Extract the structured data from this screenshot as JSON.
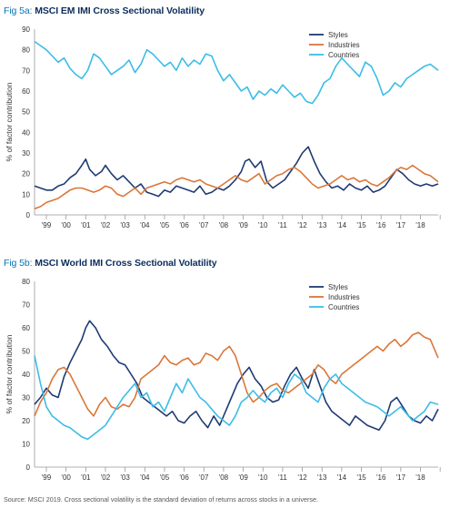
{
  "figures": [
    {
      "prefix": "Fig 5a:",
      "title": "MSCI EM IMI Cross Sectional Volatility"
    },
    {
      "prefix": "Fig 5b:",
      "title": "MSCI World IMI Cross Sectional Volatility"
    }
  ],
  "source": "Source: MSCI 2019. Cross sectional volatility is the standard deviation of returns across stocks in a universe.",
  "colors": {
    "styles": "#1f3b73",
    "industries": "#d9773a",
    "countries": "#3bbde8",
    "axis": "#999999"
  },
  "chart_data": [
    {
      "type": "line",
      "title": "",
      "xlabel": "",
      "ylabel": "% of factor contribution",
      "ylim": [
        0,
        90
      ],
      "yticks": [
        "0",
        "10",
        "20",
        "30",
        "40",
        "50",
        "60",
        "70",
        "80",
        "90"
      ],
      "xticks": [
        "'99",
        "'00",
        "'01",
        "'02",
        "'03",
        "'04",
        "'05",
        "'06",
        "'07",
        "'08",
        "'09",
        "'10",
        "'11",
        "'12",
        "'13",
        "'14",
        "'15",
        "'16",
        "'17",
        "'18"
      ],
      "xrange": [
        1998.4,
        2018.9
      ],
      "legend_position": "top-right",
      "series": [
        {
          "name": "Styles",
          "color_key": "styles",
          "x": [
            1998.4,
            1998.7,
            1999.0,
            1999.3,
            1999.6,
            1999.9,
            2000.2,
            2000.5,
            2000.8,
            2001.0,
            2001.2,
            2001.5,
            2001.8,
            2002.0,
            2002.3,
            2002.6,
            2002.9,
            2003.2,
            2003.5,
            2003.8,
            2004.1,
            2004.4,
            2004.7,
            2005.0,
            2005.3,
            2005.6,
            2005.9,
            2006.2,
            2006.5,
            2006.8,
            2007.1,
            2007.4,
            2007.7,
            2008.0,
            2008.3,
            2008.6,
            2008.9,
            2009.1,
            2009.3,
            2009.6,
            2009.9,
            2010.2,
            2010.5,
            2010.8,
            2011.1,
            2011.4,
            2011.7,
            2012.0,
            2012.3,
            2012.6,
            2012.9,
            2013.2,
            2013.5,
            2013.8,
            2014.1,
            2014.4,
            2014.7,
            2015.0,
            2015.3,
            2015.6,
            2015.9,
            2016.2,
            2016.5,
            2016.8,
            2017.1,
            2017.4,
            2017.7,
            2018.0,
            2018.3,
            2018.6,
            2018.9
          ],
          "y": [
            14,
            13,
            12,
            12,
            14,
            15,
            18,
            20,
            24,
            27,
            22,
            19,
            21,
            24,
            20,
            17,
            19,
            16,
            13,
            15,
            11,
            10,
            9,
            12,
            11,
            14,
            13,
            12,
            11,
            14,
            10,
            11,
            13,
            12,
            14,
            17,
            21,
            26,
            27,
            23,
            26,
            16,
            13,
            15,
            17,
            21,
            25,
            30,
            33,
            26,
            20,
            16,
            13,
            14,
            12,
            15,
            13,
            12,
            14,
            11,
            12,
            14,
            18,
            22,
            20,
            17,
            15,
            14,
            15,
            14,
            15
          ]
        },
        {
          "name": "Industries",
          "color_key": "industries",
          "x": [
            1998.4,
            1998.7,
            1999.0,
            1999.3,
            1999.6,
            1999.9,
            2000.2,
            2000.5,
            2000.8,
            2001.1,
            2001.4,
            2001.7,
            2002.0,
            2002.3,
            2002.6,
            2002.9,
            2003.2,
            2003.5,
            2003.8,
            2004.1,
            2004.4,
            2004.7,
            2005.0,
            2005.3,
            2005.6,
            2005.9,
            2006.2,
            2006.5,
            2006.8,
            2007.1,
            2007.4,
            2007.7,
            2008.0,
            2008.3,
            2008.6,
            2008.9,
            2009.2,
            2009.5,
            2009.8,
            2010.1,
            2010.4,
            2010.7,
            2011.0,
            2011.3,
            2011.6,
            2011.9,
            2012.2,
            2012.5,
            2012.8,
            2013.1,
            2013.4,
            2013.7,
            2014.0,
            2014.3,
            2014.6,
            2014.9,
            2015.2,
            2015.5,
            2015.8,
            2016.1,
            2016.4,
            2016.7,
            2017.0,
            2017.3,
            2017.6,
            2017.9,
            2018.2,
            2018.5,
            2018.9
          ],
          "y": [
            3,
            4,
            6,
            7,
            8,
            10,
            12,
            13,
            13,
            12,
            11,
            12,
            14,
            13,
            10,
            9,
            11,
            13,
            10,
            13,
            14,
            15,
            16,
            15,
            17,
            18,
            17,
            16,
            17,
            15,
            14,
            13,
            15,
            17,
            19,
            17,
            16,
            18,
            20,
            15,
            17,
            19,
            20,
            22,
            23,
            21,
            18,
            15,
            13,
            14,
            15,
            17,
            19,
            17,
            18,
            16,
            17,
            15,
            14,
            16,
            18,
            21,
            23,
            22,
            24,
            22,
            20,
            19,
            16
          ]
        },
        {
          "name": "Countries",
          "color_key": "countries",
          "x": [
            1998.4,
            1998.7,
            1999.0,
            1999.3,
            1999.6,
            1999.9,
            2000.2,
            2000.5,
            2000.8,
            2001.1,
            2001.4,
            2001.7,
            2002.0,
            2002.3,
            2002.6,
            2002.9,
            2003.2,
            2003.5,
            2003.8,
            2004.1,
            2004.4,
            2004.7,
            2005.0,
            2005.3,
            2005.6,
            2005.9,
            2006.2,
            2006.5,
            2006.8,
            2007.1,
            2007.4,
            2007.7,
            2008.0,
            2008.3,
            2008.6,
            2008.9,
            2009.2,
            2009.5,
            2009.8,
            2010.1,
            2010.4,
            2010.7,
            2011.0,
            2011.3,
            2011.6,
            2011.9,
            2012.2,
            2012.5,
            2012.8,
            2013.1,
            2013.4,
            2013.7,
            2014.0,
            2014.3,
            2014.6,
            2014.9,
            2015.2,
            2015.5,
            2015.8,
            2016.1,
            2016.4,
            2016.7,
            2017.0,
            2017.3,
            2017.6,
            2017.9,
            2018.2,
            2018.5,
            2018.9
          ],
          "y": [
            84,
            82,
            80,
            77,
            74,
            76,
            71,
            68,
            66,
            70,
            78,
            76,
            72,
            68,
            70,
            72,
            75,
            69,
            73,
            80,
            78,
            75,
            72,
            74,
            70,
            76,
            72,
            75,
            73,
            78,
            77,
            70,
            65,
            68,
            64,
            60,
            62,
            56,
            60,
            58,
            61,
            59,
            63,
            60,
            57,
            59,
            55,
            54,
            58,
            64,
            66,
            72,
            76,
            73,
            70,
            67,
            74,
            72,
            66,
            58,
            60,
            64,
            62,
            66,
            68,
            70,
            72,
            73,
            70
          ]
        }
      ]
    },
    {
      "type": "line",
      "title": "",
      "xlabel": "",
      "ylabel": "% of factor contribution",
      "ylim": [
        0,
        80
      ],
      "yticks": [
        "0",
        "10",
        "20",
        "30",
        "40",
        "50",
        "60",
        "70",
        "80"
      ],
      "xticks": [
        "'99",
        "'00",
        "'01",
        "'02",
        "'03",
        "'04",
        "'05",
        "'06",
        "'07",
        "'08",
        "'09",
        "'10",
        "'11",
        "'12",
        "'13",
        "'14",
        "'15",
        "'16",
        "'17",
        "'18"
      ],
      "xrange": [
        1998.4,
        2018.9
      ],
      "legend_position": "top-right",
      "series": [
        {
          "name": "Styles",
          "color_key": "styles",
          "x": [
            1998.4,
            1998.7,
            1999.0,
            1999.3,
            1999.6,
            1999.9,
            2000.2,
            2000.5,
            2000.8,
            2001.0,
            2001.2,
            2001.5,
            2001.8,
            2002.1,
            2002.4,
            2002.7,
            2003.0,
            2003.3,
            2003.6,
            2003.9,
            2004.2,
            2004.5,
            2004.8,
            2005.1,
            2005.4,
            2005.7,
            2006.0,
            2006.3,
            2006.6,
            2006.9,
            2007.2,
            2007.5,
            2007.8,
            2008.1,
            2008.4,
            2008.7,
            2009.0,
            2009.3,
            2009.6,
            2009.9,
            2010.2,
            2010.5,
            2010.8,
            2011.1,
            2011.4,
            2011.7,
            2012.0,
            2012.3,
            2012.6,
            2012.9,
            2013.2,
            2013.5,
            2013.8,
            2014.1,
            2014.4,
            2014.7,
            2015.0,
            2015.3,
            2015.6,
            2015.9,
            2016.2,
            2016.5,
            2016.8,
            2017.1,
            2017.4,
            2017.7,
            2018.0,
            2018.3,
            2018.6,
            2018.9
          ],
          "y": [
            27,
            30,
            34,
            31,
            30,
            39,
            45,
            50,
            55,
            60,
            63,
            60,
            55,
            52,
            48,
            45,
            44,
            40,
            36,
            30,
            28,
            26,
            24,
            22,
            24,
            20,
            19,
            22,
            24,
            20,
            17,
            22,
            18,
            24,
            30,
            36,
            40,
            43,
            38,
            35,
            30,
            28,
            29,
            35,
            40,
            43,
            38,
            34,
            42,
            35,
            28,
            24,
            22,
            20,
            18,
            22,
            20,
            18,
            17,
            16,
            20,
            28,
            30,
            26,
            22,
            20,
            19,
            22,
            20,
            25
          ]
        },
        {
          "name": "Industries",
          "color_key": "industries",
          "x": [
            1998.4,
            1998.7,
            1999.0,
            1999.3,
            1999.6,
            1999.9,
            2000.2,
            2000.5,
            2000.8,
            2001.1,
            2001.4,
            2001.7,
            2002.0,
            2002.3,
            2002.6,
            2002.9,
            2003.2,
            2003.5,
            2003.8,
            2004.1,
            2004.4,
            2004.7,
            2005.0,
            2005.3,
            2005.6,
            2005.9,
            2006.2,
            2006.5,
            2006.8,
            2007.1,
            2007.4,
            2007.7,
            2008.0,
            2008.3,
            2008.6,
            2008.9,
            2009.2,
            2009.5,
            2009.8,
            2010.1,
            2010.4,
            2010.7,
            2011.0,
            2011.3,
            2011.6,
            2011.9,
            2012.2,
            2012.5,
            2012.8,
            2013.1,
            2013.4,
            2013.7,
            2014.0,
            2014.3,
            2014.6,
            2014.9,
            2015.2,
            2015.5,
            2015.8,
            2016.1,
            2016.4,
            2016.7,
            2017.0,
            2017.3,
            2017.6,
            2017.9,
            2018.2,
            2018.5,
            2018.9
          ],
          "y": [
            22,
            28,
            32,
            38,
            42,
            43,
            40,
            35,
            30,
            25,
            22,
            27,
            30,
            26,
            25,
            27,
            26,
            30,
            38,
            40,
            42,
            44,
            48,
            45,
            44,
            46,
            47,
            44,
            45,
            49,
            48,
            46,
            50,
            52,
            48,
            40,
            32,
            28,
            30,
            33,
            35,
            36,
            33,
            32,
            34,
            36,
            38,
            40,
            44,
            42,
            38,
            36,
            40,
            42,
            44,
            46,
            48,
            50,
            52,
            50,
            53,
            55,
            52,
            54,
            57,
            58,
            56,
            55,
            47
          ]
        },
        {
          "name": "Countries",
          "color_key": "countries",
          "x": [
            1998.4,
            1998.7,
            1999.0,
            1999.3,
            1999.6,
            1999.9,
            2000.2,
            2000.5,
            2000.8,
            2001.1,
            2001.4,
            2001.7,
            2002.0,
            2002.3,
            2002.6,
            2002.9,
            2003.2,
            2003.5,
            2003.8,
            2004.1,
            2004.4,
            2004.7,
            2005.0,
            2005.3,
            2005.6,
            2005.9,
            2006.2,
            2006.5,
            2006.8,
            2007.1,
            2007.4,
            2007.7,
            2008.0,
            2008.3,
            2008.6,
            2008.9,
            2009.2,
            2009.5,
            2009.8,
            2010.1,
            2010.4,
            2010.7,
            2011.0,
            2011.3,
            2011.6,
            2011.9,
            2012.2,
            2012.5,
            2012.8,
            2013.1,
            2013.4,
            2013.7,
            2014.0,
            2014.3,
            2014.6,
            2014.9,
            2015.2,
            2015.5,
            2015.8,
            2016.1,
            2016.4,
            2016.7,
            2017.0,
            2017.3,
            2017.6,
            2017.9,
            2018.2,
            2018.5,
            2018.9
          ],
          "y": [
            48,
            36,
            26,
            22,
            20,
            18,
            17,
            15,
            13,
            12,
            14,
            16,
            18,
            22,
            26,
            30,
            33,
            36,
            30,
            32,
            26,
            28,
            24,
            30,
            36,
            32,
            38,
            34,
            30,
            28,
            25,
            22,
            20,
            18,
            22,
            28,
            30,
            33,
            30,
            28,
            32,
            34,
            30,
            36,
            40,
            38,
            32,
            30,
            28,
            34,
            38,
            40,
            36,
            34,
            32,
            30,
            28,
            27,
            26,
            24,
            22,
            24,
            26,
            23,
            20,
            22,
            24,
            28,
            27
          ]
        }
      ]
    }
  ]
}
